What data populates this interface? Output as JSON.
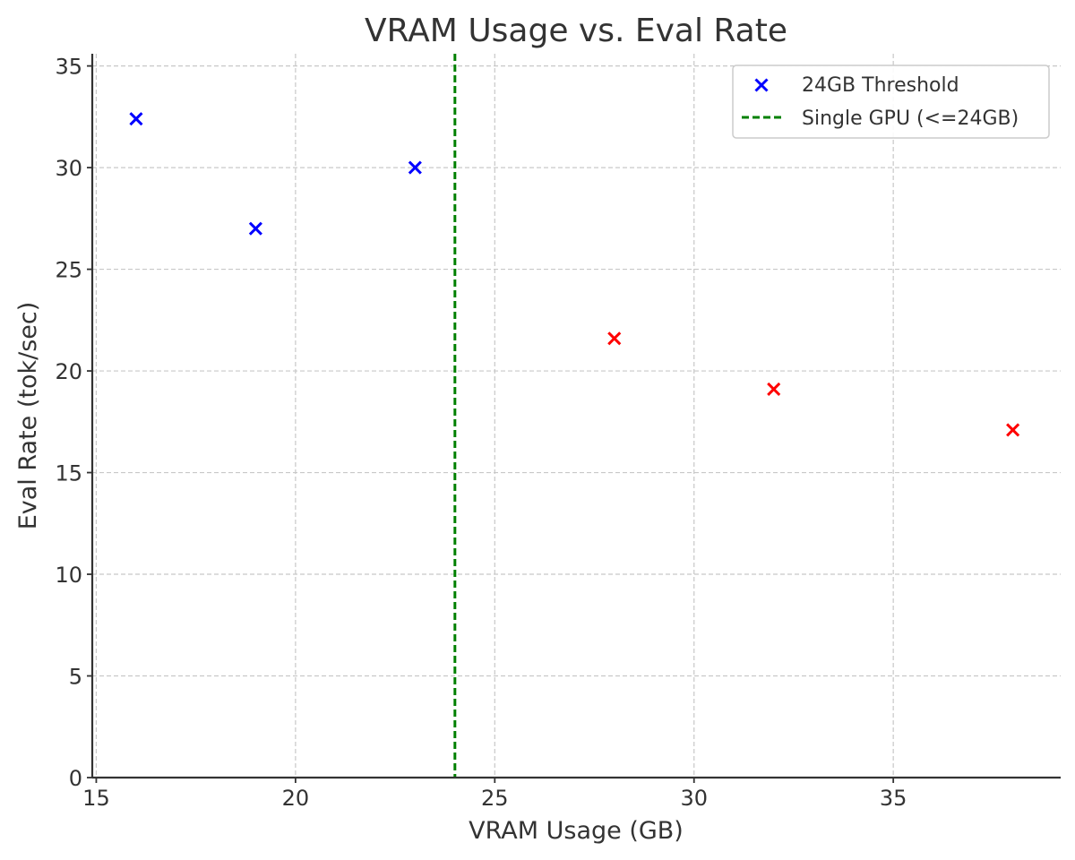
{
  "chart_data": {
    "type": "scatter",
    "title": "VRAM Usage vs. Eval Rate",
    "xlabel": "VRAM Usage (GB)",
    "ylabel": "Eval Rate (tok/sec)",
    "xlim": [
      14.9,
      39.2
    ],
    "ylim": [
      0,
      35.6
    ],
    "x_ticks": [
      15,
      20,
      25,
      30,
      35
    ],
    "y_ticks": [
      0,
      5,
      10,
      15,
      20,
      25,
      30,
      35
    ],
    "grid": true,
    "legend_position": "top-right",
    "series": [
      {
        "name": "24GB Threshold",
        "marker": "x",
        "points": [
          {
            "x": 16,
            "y": 32.4,
            "color": "#0000ff"
          },
          {
            "x": 19,
            "y": 27.0,
            "color": "#0000ff"
          },
          {
            "x": 23,
            "y": 30.0,
            "color": "#0000ff"
          },
          {
            "x": 28,
            "y": 21.6,
            "color": "#ff0000"
          },
          {
            "x": 32,
            "y": 19.1,
            "color": "#ff0000"
          },
          {
            "x": 38,
            "y": 17.1,
            "color": "#ff0000"
          }
        ]
      }
    ],
    "reference_lines": [
      {
        "name": "Single GPU (<=24GB)",
        "orientation": "vertical",
        "x": 24,
        "style": "dashed",
        "color": "#008000"
      }
    ]
  }
}
